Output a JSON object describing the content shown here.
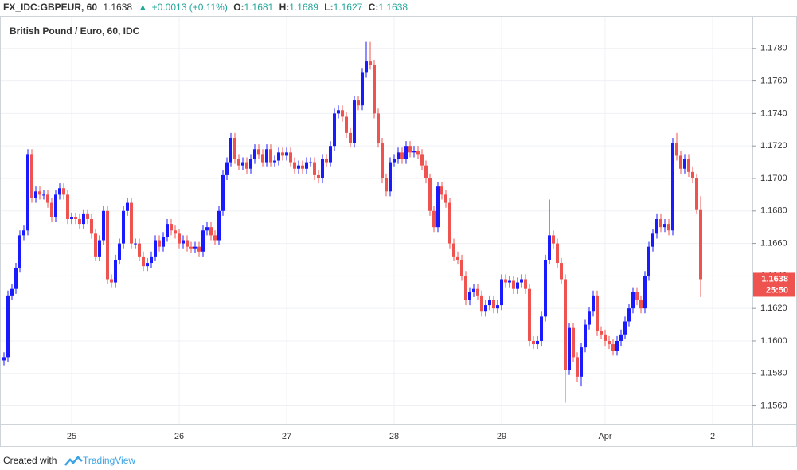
{
  "header": {
    "symbol": "FX_IDC:GBPEUR, 60",
    "last": "1.1638",
    "arrow": "▲",
    "change": "+0.0013 (+0.11%)",
    "ohlc": [
      {
        "label": "O:",
        "value": "1.1681"
      },
      {
        "label": "H:",
        "value": "1.1689"
      },
      {
        "label": "L:",
        "value": "1.1627"
      },
      {
        "label": "C:",
        "value": "1.1638"
      }
    ]
  },
  "chart_data": {
    "type": "candlestick",
    "title": "British Pound / Euro, 60, IDC",
    "categories": [
      null,
      null,
      null,
      null,
      null,
      null,
      null,
      null,
      null,
      null,
      null,
      null,
      null,
      null,
      null,
      null,
      null,
      "25",
      null,
      null,
      null,
      null,
      null,
      null,
      null,
      null,
      null,
      null,
      null,
      null,
      null,
      null,
      null,
      null,
      null,
      null,
      null,
      null,
      null,
      null,
      null,
      null,
      null,
      null,
      "26",
      null,
      null,
      null,
      null,
      null,
      null,
      null,
      null,
      null,
      null,
      null,
      null,
      null,
      null,
      null,
      null,
      null,
      null,
      null,
      null,
      null,
      null,
      null,
      null,
      null,
      null,
      "27",
      null,
      null,
      null,
      null,
      null,
      null,
      null,
      null,
      null,
      null,
      null,
      null,
      null,
      null,
      null,
      null,
      null,
      null,
      null,
      null,
      null,
      null,
      null,
      null,
      null,
      null,
      "28",
      null,
      null,
      null,
      null,
      null,
      null,
      null,
      null,
      null,
      null,
      null,
      null,
      null,
      null,
      null,
      null,
      null,
      null,
      null,
      null,
      null,
      null,
      null,
      null,
      null,
      null,
      "29",
      null,
      null,
      null,
      null,
      null,
      null,
      null,
      null,
      null,
      null,
      null,
      null,
      null,
      null,
      null,
      null,
      null,
      null,
      null,
      null,
      null,
      null,
      null,
      null,
      null,
      "Apr",
      null,
      null,
      null,
      null,
      null,
      null,
      null,
      null,
      null,
      null,
      null,
      null,
      null,
      null,
      null,
      null,
      null,
      null,
      null,
      null,
      null,
      null,
      null,
      null,
      null,
      null,
      "2"
    ],
    "open": [
      1.1588,
      1.159,
      1.1628,
      1.1632,
      1.1645,
      1.1665,
      1.1668,
      1.1715,
      1.1688,
      1.1692,
      1.169,
      1.169,
      1.1685,
      1.1676,
      1.169,
      1.1694,
      1.169,
      1.1675,
      1.1676,
      1.1675,
      1.1672,
      1.1678,
      1.1675,
      1.1666,
      1.1652,
      1.1662,
      1.168,
      1.1638,
      1.1636,
      1.165,
      1.166,
      1.168,
      1.1685,
      1.166,
      1.166,
      1.1652,
      1.1646,
      1.1648,
      1.1652,
      1.1662,
      1.1658,
      1.1664,
      1.1672,
      1.1668,
      1.1666,
      1.166,
      1.1662,
      1.1658,
      1.1657,
      1.1658,
      1.1655,
      1.1668,
      1.167,
      1.1665,
      1.1662,
      1.168,
      1.1702,
      1.171,
      1.1725,
      1.1712,
      1.1708,
      1.171,
      1.1706,
      1.1712,
      1.1718,
      1.1715,
      1.171,
      1.1718,
      1.171,
      1.1711,
      1.1716,
      1.1714,
      1.1716,
      1.171,
      1.1706,
      1.1708,
      1.1706,
      1.171,
      1.171,
      1.1702,
      1.17,
      1.1712,
      1.171,
      1.172,
      1.174,
      1.1742,
      1.1738,
      1.1728,
      1.1722,
      1.1748,
      1.1745,
      1.1765,
      1.1772,
      1.177,
      1.174,
      1.1722,
      1.17,
      1.1692,
      1.171,
      1.1712,
      1.1716,
      1.1712,
      1.172,
      1.1716,
      1.1717,
      1.1715,
      1.1708,
      1.17,
      1.168,
      1.167,
      1.1695,
      1.169,
      1.1685,
      1.166,
      1.1652,
      1.165,
      1.164,
      1.1625,
      1.163,
      1.1632,
      1.1628,
      1.1618,
      1.1622,
      1.1625,
      1.162,
      1.1622,
      1.1638,
      1.1636,
      1.1637,
      1.1632,
      1.1636,
      1.1638,
      1.1632,
      1.16,
      1.1598,
      1.16,
      1.1615,
      1.165,
      1.1665,
      1.166,
      1.1648,
      1.1638,
      1.1582,
      1.1608,
      1.159,
      1.1578,
      1.1596,
      1.161,
      1.1618,
      1.1628,
      1.1606,
      1.1604,
      1.16,
      1.1598,
      1.1594,
      1.16,
      1.1604,
      1.1612,
      1.162,
      1.163,
      1.1625,
      1.162,
      1.164,
      1.1658,
      1.1666,
      1.1675,
      1.167,
      1.1672,
      1.1668,
      1.1722,
      1.1714,
      1.1706,
      1.1712,
      1.1704,
      1.17,
      1.1681,
      null,
      null,
      null
    ],
    "high": [
      1.1593,
      1.1631,
      1.1635,
      1.1648,
      1.1668,
      1.1671,
      1.1718,
      1.1718,
      1.1695,
      1.1695,
      1.1693,
      1.1693,
      1.1688,
      1.1693,
      1.1697,
      1.1697,
      1.1693,
      1.1679,
      1.1679,
      1.1678,
      1.1681,
      1.1681,
      1.1678,
      1.1669,
      1.1665,
      1.1683,
      1.1683,
      1.1641,
      1.1653,
      1.1663,
      1.1683,
      1.1688,
      1.1688,
      1.1663,
      1.1663,
      1.1655,
      1.1651,
      1.1655,
      1.1665,
      1.1665,
      1.1667,
      1.1675,
      1.1675,
      1.1671,
      1.1669,
      1.1665,
      1.1665,
      1.1661,
      1.1661,
      1.1661,
      1.1671,
      1.1673,
      1.1673,
      1.1668,
      1.1683,
      1.1705,
      1.1713,
      1.1728,
      1.1728,
      1.1715,
      1.1713,
      1.1713,
      1.1715,
      1.1721,
      1.1721,
      1.1718,
      1.1721,
      1.1721,
      1.1714,
      1.1719,
      1.1719,
      1.1719,
      1.1719,
      1.1713,
      1.1711,
      1.1711,
      1.1713,
      1.1713,
      1.1713,
      1.1705,
      1.1715,
      1.1715,
      1.1723,
      1.1743,
      1.1745,
      1.1745,
      1.1741,
      1.1731,
      1.1751,
      1.1751,
      1.1768,
      1.1784,
      1.1784,
      1.1773,
      1.1743,
      1.1725,
      1.1703,
      1.1713,
      1.1715,
      1.1719,
      1.1719,
      1.1723,
      1.1723,
      1.172,
      1.172,
      1.1718,
      1.1711,
      1.1703,
      1.1683,
      1.1698,
      1.1698,
      1.1693,
      1.1688,
      1.1663,
      1.1655,
      1.1653,
      1.1643,
      1.1633,
      1.1635,
      1.1635,
      1.1631,
      1.1625,
      1.1628,
      1.1628,
      1.1625,
      1.1641,
      1.1641,
      1.164,
      1.164,
      1.1639,
      1.1641,
      1.1641,
      1.1635,
      1.1603,
      1.1603,
      1.1618,
      1.1653,
      1.1687,
      1.1668,
      1.1663,
      1.1651,
      1.1641,
      1.1611,
      1.1611,
      1.1593,
      1.1599,
      1.1613,
      1.1621,
      1.1631,
      1.1631,
      1.1609,
      1.1607,
      1.1603,
      1.1601,
      1.1603,
      1.1607,
      1.1615,
      1.1623,
      1.1633,
      1.1633,
      1.1628,
      1.1643,
      1.1661,
      1.1669,
      1.1678,
      1.1678,
      1.1675,
      1.1675,
      1.1725,
      1.1728,
      1.1717,
      1.1715,
      1.1715,
      1.1707,
      1.1703,
      1.1689,
      null,
      null,
      null
    ],
    "low": [
      1.1585,
      1.1587,
      1.1625,
      1.1629,
      1.1642,
      1.1662,
      1.1665,
      1.1685,
      1.1685,
      1.1687,
      1.1687,
      1.1682,
      1.1673,
      1.1673,
      1.1687,
      1.1687,
      1.1672,
      1.1672,
      1.1672,
      1.1669,
      1.1669,
      1.1672,
      1.1663,
      1.1649,
      1.1649,
      1.1659,
      1.1635,
      1.1633,
      1.1633,
      1.1647,
      1.1657,
      1.1677,
      1.1657,
      1.1657,
      1.1649,
      1.1643,
      1.1643,
      1.1645,
      1.1649,
      1.1655,
      1.1655,
      1.1661,
      1.1665,
      1.1663,
      1.1657,
      1.1657,
      1.1655,
      1.1654,
      1.1654,
      1.1652,
      1.1652,
      1.1665,
      1.1662,
      1.1659,
      1.1659,
      1.1677,
      1.1699,
      1.1707,
      1.1709,
      1.1705,
      1.1705,
      1.1703,
      1.1703,
      1.1709,
      1.1712,
      1.1707,
      1.1707,
      1.1707,
      1.1707,
      1.1708,
      1.1711,
      1.1711,
      1.1707,
      1.1703,
      1.1703,
      1.1703,
      1.1703,
      1.1707,
      1.1699,
      1.1697,
      1.1697,
      1.1707,
      1.1707,
      1.1717,
      1.1737,
      1.1735,
      1.1725,
      1.1719,
      1.1719,
      1.1742,
      1.1742,
      1.1762,
      1.1767,
      1.1737,
      1.1719,
      1.1697,
      1.1689,
      1.1689,
      1.1707,
      1.1709,
      1.1709,
      1.1709,
      1.1713,
      1.1713,
      1.1712,
      1.1705,
      1.1697,
      1.1677,
      1.1667,
      1.1667,
      1.1687,
      1.1682,
      1.1657,
      1.1649,
      1.1647,
      1.1637,
      1.1622,
      1.1622,
      1.1627,
      1.1625,
      1.1615,
      1.1615,
      1.1619,
      1.1617,
      1.1617,
      1.1619,
      1.1633,
      1.1633,
      1.1629,
      1.1629,
      1.1633,
      1.1629,
      1.1597,
      1.1595,
      1.1595,
      1.1597,
      1.1612,
      1.1647,
      1.1657,
      1.1645,
      1.1635,
      1.1562,
      1.1579,
      1.1587,
      1.1575,
      1.1572,
      1.1593,
      1.1607,
      1.1615,
      1.1603,
      1.1601,
      1.1597,
      1.1595,
      1.1591,
      1.1591,
      1.1597,
      1.1601,
      1.1609,
      1.1617,
      1.1622,
      1.1617,
      1.1617,
      1.1637,
      1.1655,
      1.1663,
      1.1667,
      1.1667,
      1.1665,
      1.1665,
      1.1711,
      1.1703,
      1.1703,
      1.1701,
      1.1697,
      1.1678,
      1.1627,
      null,
      null,
      null
    ],
    "close": [
      1.159,
      1.1628,
      1.1632,
      1.1645,
      1.1665,
      1.1668,
      1.1715,
      1.1688,
      1.1692,
      1.169,
      1.169,
      1.1685,
      1.1676,
      1.169,
      1.1694,
      1.169,
      1.1675,
      1.1676,
      1.1675,
      1.1672,
      1.1678,
      1.1675,
      1.1666,
      1.1652,
      1.1662,
      1.168,
      1.1638,
      1.1636,
      1.165,
      1.166,
      1.168,
      1.1685,
      1.166,
      1.166,
      1.1652,
      1.1646,
      1.1648,
      1.1652,
      1.1662,
      1.1658,
      1.1664,
      1.1672,
      1.1668,
      1.1666,
      1.166,
      1.1662,
      1.1658,
      1.1657,
      1.1658,
      1.1655,
      1.1668,
      1.167,
      1.1665,
      1.1662,
      1.168,
      1.1702,
      1.171,
      1.1725,
      1.1712,
      1.1708,
      1.171,
      1.1706,
      1.1712,
      1.1718,
      1.1715,
      1.171,
      1.1718,
      1.171,
      1.1711,
      1.1716,
      1.1714,
      1.1716,
      1.171,
      1.1706,
      1.1708,
      1.1706,
      1.171,
      1.171,
      1.1702,
      1.17,
      1.1712,
      1.171,
      1.172,
      1.174,
      1.1742,
      1.1738,
      1.1728,
      1.1722,
      1.1748,
      1.1745,
      1.1765,
      1.1772,
      1.177,
      1.174,
      1.1722,
      1.17,
      1.1692,
      1.171,
      1.1712,
      1.1716,
      1.1712,
      1.172,
      1.1716,
      1.1717,
      1.1715,
      1.1708,
      1.17,
      1.168,
      1.167,
      1.1695,
      1.169,
      1.1685,
      1.166,
      1.1652,
      1.165,
      1.164,
      1.1625,
      1.163,
      1.1632,
      1.1628,
      1.1618,
      1.1622,
      1.1625,
      1.162,
      1.1622,
      1.1638,
      1.1636,
      1.1637,
      1.1632,
      1.1636,
      1.1638,
      1.1632,
      1.16,
      1.1598,
      1.16,
      1.1615,
      1.165,
      1.1665,
      1.166,
      1.1648,
      1.1638,
      1.1582,
      1.1608,
      1.159,
      1.1578,
      1.1596,
      1.161,
      1.1618,
      1.1628,
      1.1606,
      1.1604,
      1.16,
      1.1598,
      1.1594,
      1.16,
      1.1604,
      1.1612,
      1.162,
      1.163,
      1.1625,
      1.162,
      1.164,
      1.1658,
      1.1666,
      1.1675,
      1.167,
      1.1672,
      1.1668,
      1.1722,
      1.1714,
      1.1706,
      1.1712,
      1.1704,
      1.17,
      1.1681,
      1.1638,
      null,
      null,
      null
    ],
    "up_color": "#1a1aff",
    "down_color": "#ef5350",
    "ylim": [
      1.1549,
      1.18
    ],
    "yticks": [
      {
        "value": 1.156,
        "label": "1.1560"
      },
      {
        "value": 1.158,
        "label": "1.1580"
      },
      {
        "value": 1.16,
        "label": "1.1600"
      },
      {
        "value": 1.162,
        "label": "1.1620"
      },
      {
        "value": 1.164,
        "label": "1.1640"
      },
      {
        "value": 1.166,
        "label": "1.1660"
      },
      {
        "value": 1.168,
        "label": "1.1680"
      },
      {
        "value": 1.17,
        "label": "1.1700"
      },
      {
        "value": 1.172,
        "label": "1.1720"
      },
      {
        "value": 1.174,
        "label": "1.1740"
      },
      {
        "value": 1.176,
        "label": "1.1760"
      },
      {
        "value": 1.178,
        "label": "1.1780"
      }
    ],
    "grid": true,
    "last_price": 1.1638,
    "countdown": "25:50"
  },
  "footer": {
    "text": "Created with",
    "brand": "TradingView"
  }
}
